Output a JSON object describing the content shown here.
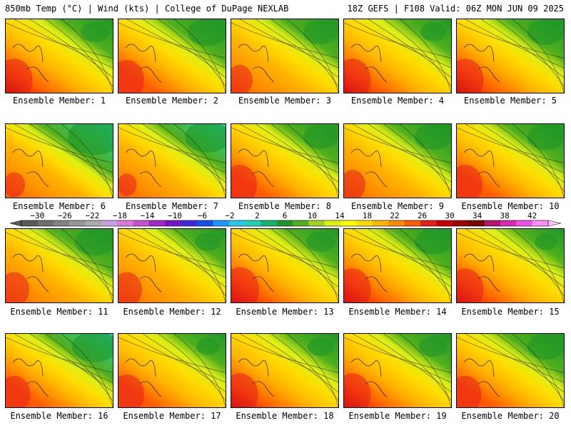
{
  "header": {
    "left_title": "850mb Temp (°C) | Wind (kts) | College of DuPage NEXLAB",
    "right_title": "18Z GEFS | F108 Valid: 06Z MON JUN 09 2025"
  },
  "colorbar": {
    "tick_labels": [
      "−30",
      "−26",
      "−22",
      "−18",
      "−14",
      "−10",
      "−6",
      "−2",
      "2",
      "6",
      "10",
      "14",
      "18",
      "22",
      "26",
      "30",
      "34",
      "38",
      "42"
    ],
    "colors": [
      "#5a5a5a",
      "#6e6e6e",
      "#828282",
      "#969696",
      "#aaaaaa",
      "#c8a0e6",
      "#dc78dc",
      "#c850c8",
      "#a028c8",
      "#7814c8",
      "#3c28dc",
      "#1450f0",
      "#1e96ff",
      "#28c8e6",
      "#1ed2b4",
      "#14b46e",
      "#1e9628",
      "#50af1e",
      "#a0d21e",
      "#dcf014",
      "#ffff00",
      "#ffdc00",
      "#ffb400",
      "#ff8c00",
      "#ff5a00",
      "#e61e1e",
      "#c80000",
      "#a00000",
      "#780000",
      "#b4146e",
      "#dc28b4",
      "#f050e6",
      "#ff8cff"
    ]
  },
  "members": [
    {
      "label": "Ensemble Member: 1",
      "warm": 0.85,
      "cool": 0.25
    },
    {
      "label": "Ensemble Member: 2",
      "warm": 0.8,
      "cool": 0.45
    },
    {
      "label": "Ensemble Member: 3",
      "warm": 0.6,
      "cool": 0.35
    },
    {
      "label": "Ensemble Member: 4",
      "warm": 0.85,
      "cool": 0.2
    },
    {
      "label": "Ensemble Member: 5",
      "warm": 0.85,
      "cool": 0.4
    },
    {
      "label": "Ensemble Member: 6",
      "warm": 0.5,
      "cool": 0.7
    },
    {
      "label": "Ensemble Member: 7",
      "warm": 0.45,
      "cool": 0.55
    },
    {
      "label": "Ensemble Member: 8",
      "warm": 0.8,
      "cool": 0.35
    },
    {
      "label": "Ensemble Member: 9",
      "warm": 0.6,
      "cool": 0.4
    },
    {
      "label": "Ensemble Member: 10",
      "warm": 0.8,
      "cool": 0.4
    },
    {
      "label": "Ensemble Member: 11",
      "warm": 0.7,
      "cool": 0.45
    },
    {
      "label": "Ensemble Member: 12",
      "warm": 0.7,
      "cool": 0.2
    },
    {
      "label": "Ensemble Member: 13",
      "warm": 0.9,
      "cool": 0.25
    },
    {
      "label": "Ensemble Member: 14",
      "warm": 0.85,
      "cool": 0.4
    },
    {
      "label": "Ensemble Member: 15",
      "warm": 0.85,
      "cool": 0.15
    },
    {
      "label": "Ensemble Member: 16",
      "warm": 0.75,
      "cool": 0.55
    },
    {
      "label": "Ensemble Member: 17",
      "warm": 0.8,
      "cool": 0.15
    },
    {
      "label": "Ensemble Member: 18",
      "warm": 0.85,
      "cool": 0.2
    },
    {
      "label": "Ensemble Member: 19",
      "warm": 0.85,
      "cool": 0.25
    },
    {
      "label": "Ensemble Member: 20",
      "warm": 0.75,
      "cool": 0.4
    }
  ]
}
